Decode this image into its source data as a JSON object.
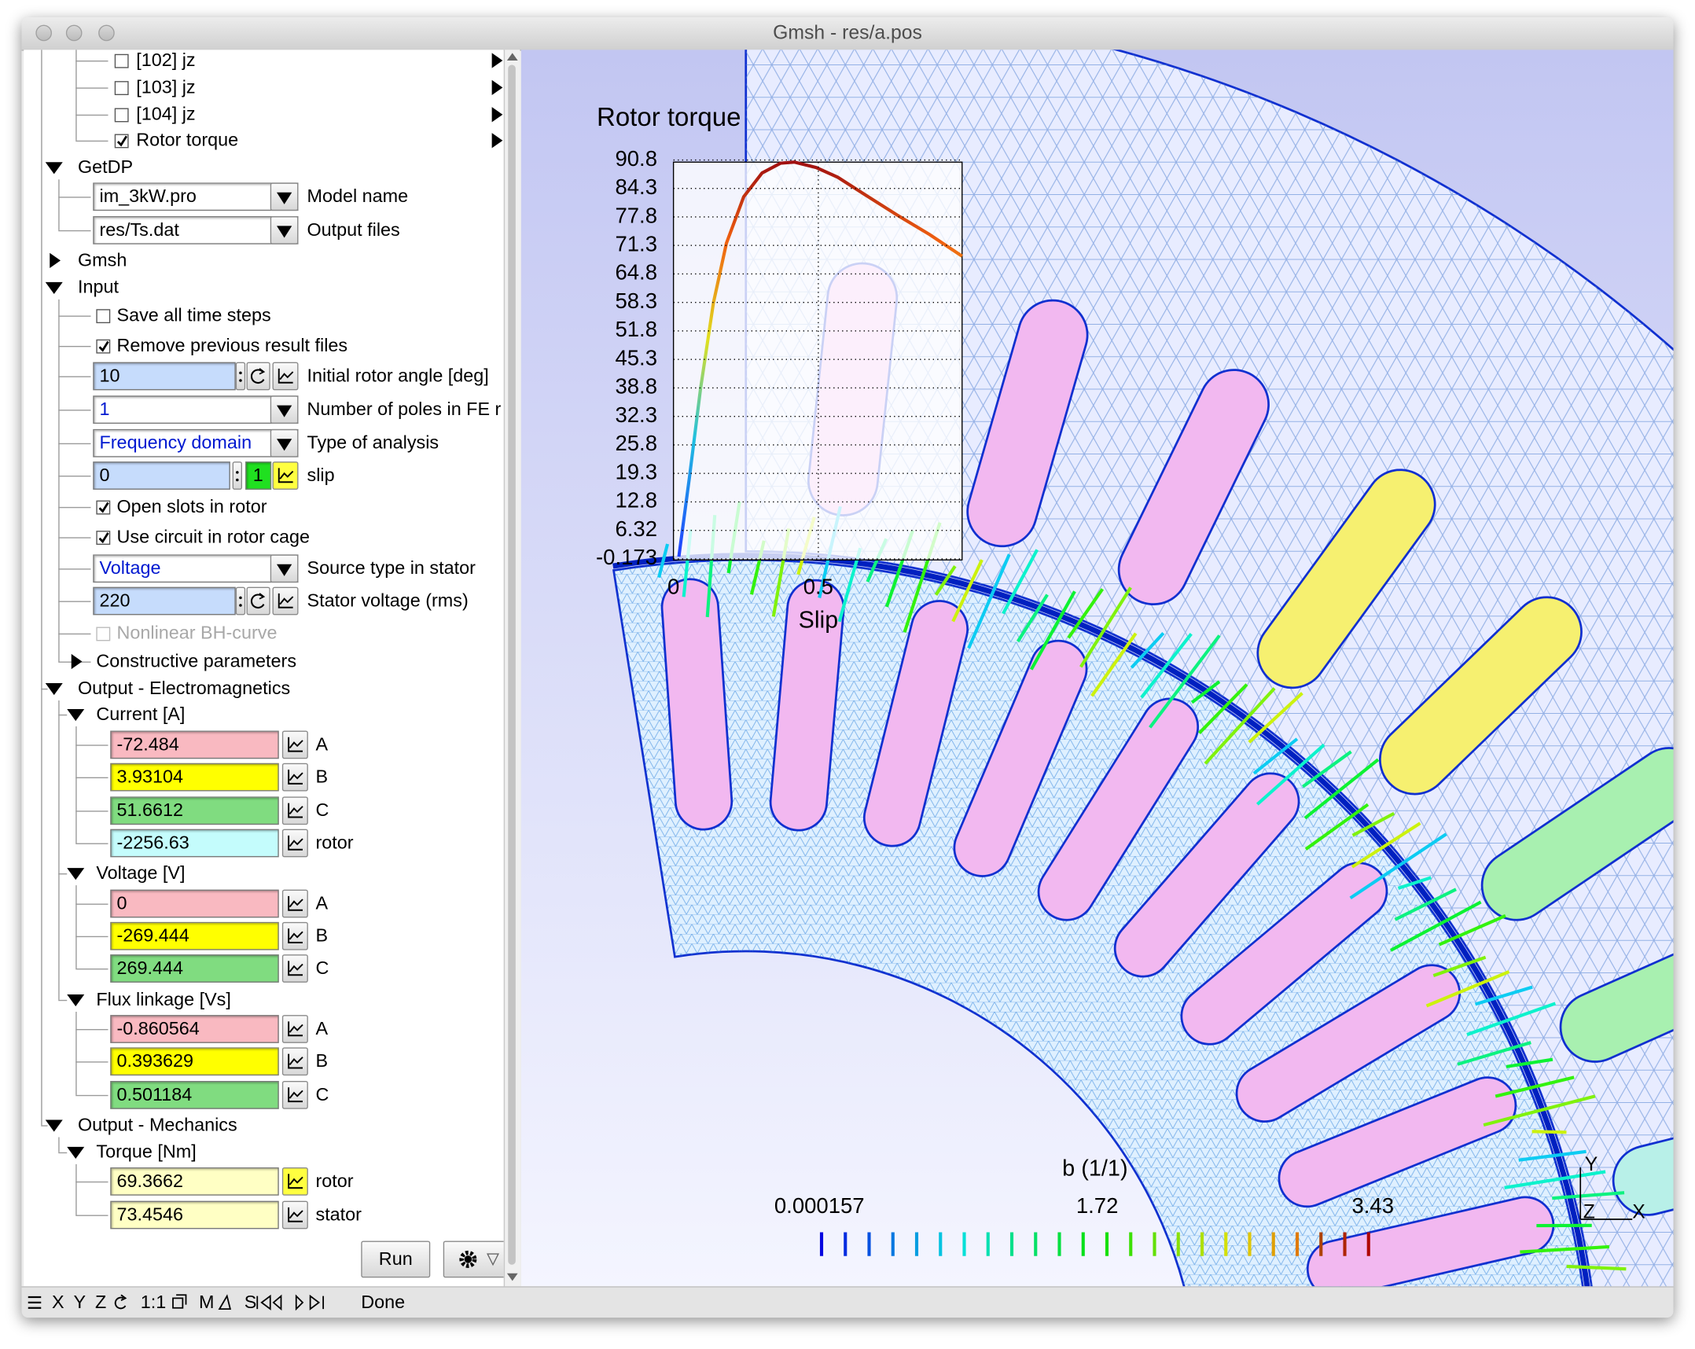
{
  "window": {
    "title": "Gmsh - res/a.pos"
  },
  "tree": {
    "views": [
      {
        "label": "[102] jz",
        "checked": false
      },
      {
        "label": "[103] jz",
        "checked": false
      },
      {
        "label": "[104] jz",
        "checked": false
      },
      {
        "label": "Rotor torque",
        "checked": true
      }
    ],
    "getdp": {
      "label": "GetDP",
      "fields": [
        {
          "value": "im_3kW.pro",
          "label": "Model name"
        },
        {
          "value": "res/Ts.dat",
          "label": "Output files"
        }
      ]
    },
    "gmsh": {
      "label": "Gmsh"
    },
    "input": {
      "label": "Input",
      "items": [
        {
          "kind": "check",
          "label": "Save all time steps",
          "checked": false
        },
        {
          "kind": "check",
          "label": "Remove previous result files",
          "checked": true
        },
        {
          "kind": "number",
          "value": "10",
          "label": "Initial rotor angle [deg]"
        },
        {
          "kind": "choice",
          "value": "1",
          "label": "Number of poles in FE r"
        },
        {
          "kind": "choice",
          "value": "Frequency domain",
          "label": "Type of analysis"
        },
        {
          "kind": "loop",
          "value": "0",
          "step": "1",
          "label": "slip",
          "graph_active": true
        },
        {
          "kind": "check",
          "label": "Open slots in rotor",
          "checked": true
        },
        {
          "kind": "check",
          "label": "Use circuit in rotor cage",
          "checked": true
        },
        {
          "kind": "choice",
          "value": "Voltage",
          "label": "Source type in stator"
        },
        {
          "kind": "number",
          "value": "220",
          "label": "Stator voltage (rms)"
        },
        {
          "kind": "check",
          "label": "Nonlinear BH-curve",
          "checked": false,
          "disabled": true
        },
        {
          "kind": "group",
          "label": "Constructive parameters"
        }
      ]
    },
    "outputs": [
      {
        "label": "Output - Electromagnetics",
        "groups": [
          {
            "label": "Current [A]",
            "rows": [
              {
                "value": "-72.484",
                "label": "A",
                "color": "#f9b9c1"
              },
              {
                "value": "3.93104",
                "label": "B",
                "color": "#ffff00"
              },
              {
                "value": "51.6612",
                "label": "C",
                "color": "#80dc80"
              },
              {
                "value": "-2256.63",
                "label": "rotor",
                "color": "#c4fcfc"
              }
            ]
          },
          {
            "label": "Voltage [V]",
            "rows": [
              {
                "value": "0",
                "label": "A",
                "color": "#f9b9c1"
              },
              {
                "value": "-269.444",
                "label": "B",
                "color": "#ffff00"
              },
              {
                "value": "269.444",
                "label": "C",
                "color": "#80dc80"
              }
            ]
          },
          {
            "label": "Flux linkage [Vs]",
            "rows": [
              {
                "value": "-0.860564",
                "label": "A",
                "color": "#f9b9c1"
              },
              {
                "value": "0.393629",
                "label": "B",
                "color": "#ffff00"
              },
              {
                "value": "0.501184",
                "label": "C",
                "color": "#80dc80"
              }
            ]
          }
        ]
      },
      {
        "label": "Output - Mechanics",
        "groups": [
          {
            "label": "Torque [Nm]",
            "rows": [
              {
                "value": "69.3662",
                "label": "rotor",
                "color": "#ffffc4",
                "graph_active": true
              },
              {
                "value": "73.4546",
                "label": "stator",
                "color": "#ffffc4"
              }
            ]
          }
        ]
      }
    ]
  },
  "run_button": "Run",
  "plot": {
    "title": "Rotor torque",
    "yticks": [
      "90.8",
      "84.3",
      "77.8",
      "71.3",
      "64.8",
      "58.3",
      "51.8",
      "45.3",
      "38.8",
      "32.3",
      "25.8",
      "19.3",
      "12.8",
      "6.32",
      "-0.173"
    ],
    "xticks": [
      "0",
      "0.5"
    ],
    "xlabel": "Slip"
  },
  "colorbar": {
    "title": "b (1/1)",
    "labels": [
      "0.000157",
      "1.72",
      "3.43"
    ]
  },
  "axes": [
    "Y",
    "Z",
    "X"
  ],
  "status": {
    "buttons": [
      "X",
      "Y",
      "Z",
      "1:1",
      "M",
      "S"
    ],
    "message": "Done"
  }
}
